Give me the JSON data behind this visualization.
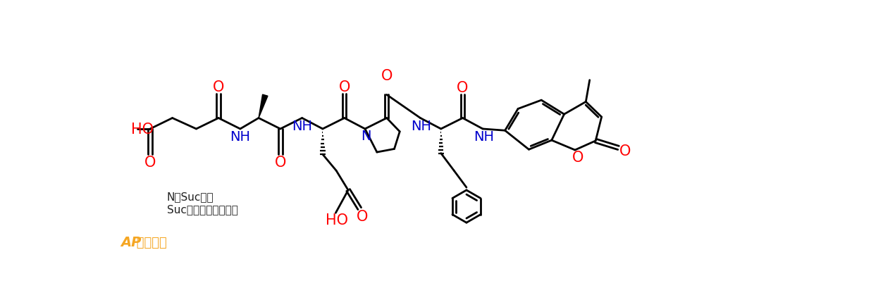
{
  "bg_color": "#ffffff",
  "bond_color": "#000000",
  "red_color": "#ff0000",
  "blue_color": "#0000cc",
  "orange_color": "#f5a623",
  "annotation1": "N端Suc修饰",
  "annotation2": "Suc：丁二酸、琥珀酸",
  "watermark_ap": "AP",
  "watermark_cn": " 专肽生物",
  "figsize": [
    12.36,
    4.1
  ],
  "dpi": 100
}
